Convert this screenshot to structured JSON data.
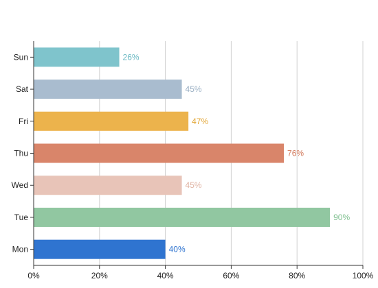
{
  "chart_data": {
    "type": "bar",
    "orientation": "horizontal",
    "categories": [
      "Mon",
      "Tue",
      "Wed",
      "Thu",
      "Fri",
      "Sat",
      "Sun"
    ],
    "values": [
      40,
      90,
      45,
      76,
      47,
      45,
      26
    ],
    "value_labels": [
      "40%",
      "90%",
      "45%",
      "76%",
      "47%",
      "45%",
      "26%"
    ],
    "colors": [
      "#2f74d0",
      "#91c7a1",
      "#e8c4b8",
      "#d9856a",
      "#ecb34c",
      "#a9bccf",
      "#7fc4cc"
    ],
    "label_colors": [
      "#2f74d0",
      "#7fbf8f",
      "#e0b3a3",
      "#d27a5c",
      "#e3a83a",
      "#9bb0c4",
      "#6dbac4"
    ],
    "xlim": [
      0,
      100
    ],
    "x_ticks": [
      0,
      20,
      40,
      60,
      80,
      100
    ],
    "x_tick_labels": [
      "0%",
      "20%",
      "40%",
      "60%",
      "80%",
      "100%"
    ],
    "grid": "vertical",
    "legend": "none",
    "title": "",
    "xlabel": "",
    "ylabel": ""
  }
}
